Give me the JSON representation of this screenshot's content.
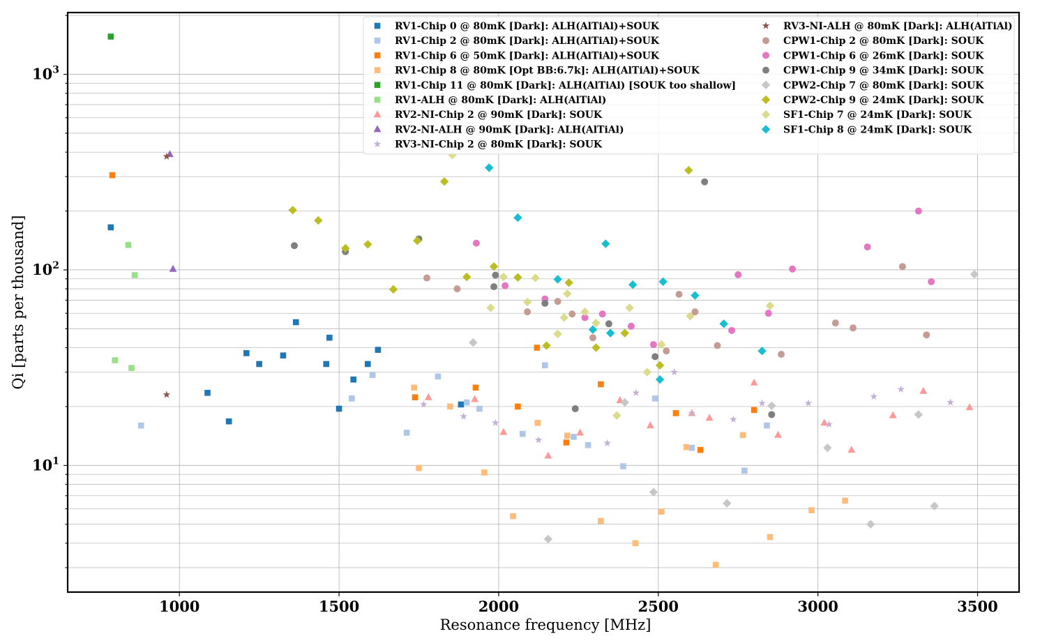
{
  "chart_data": {
    "type": "scatter",
    "title": "",
    "xlabel": "Resonance frequency [MHz]",
    "ylabel": "Qi [parts per thousand]",
    "x_scale": "linear",
    "y_scale": "log",
    "xlim": [
      650,
      3630
    ],
    "ylim": [
      2.25,
      2070
    ],
    "x_ticks": [
      1000,
      1500,
      2000,
      2500,
      3000,
      3500
    ],
    "x_tick_labels": [
      "1000",
      "1500",
      "2000",
      "2500",
      "3000",
      "3500"
    ],
    "y_ticks": [
      10,
      100,
      1000
    ],
    "y_tick_base": "10",
    "y_tick_exponents": [
      "1",
      "2",
      "3"
    ],
    "grid": true,
    "legend_placement": "top-right",
    "series": [
      {
        "name": "RV1-Chip 0 @ 80mK [Dark]: ALH(AlTiAl)+SOUK",
        "marker": "square",
        "color": "#1f77b4",
        "points": [
          [
            785,
            165
          ],
          [
            1088,
            23.5
          ],
          [
            1155,
            16.8
          ],
          [
            1210,
            37.5
          ],
          [
            1250,
            33
          ],
          [
            1325,
            36.5
          ],
          [
            1365,
            54
          ],
          [
            1460,
            33
          ],
          [
            1470,
            45
          ],
          [
            1500,
            19.5
          ],
          [
            1545,
            27.5
          ],
          [
            1590,
            33
          ],
          [
            1622,
            39
          ],
          [
            1882,
            20.5
          ]
        ]
      },
      {
        "name": "RV1-Chip 2 @ 80mK [Dark]: ALH(AlTiAl)+SOUK",
        "marker": "square",
        "color": "#aec7e8",
        "points": [
          [
            880,
            16
          ],
          [
            1540,
            22
          ],
          [
            1605,
            29
          ],
          [
            1712,
            14.7
          ],
          [
            1810,
            28.5
          ],
          [
            1900,
            21
          ],
          [
            1940,
            19.5
          ],
          [
            2075,
            14.5
          ],
          [
            2145,
            32.5
          ],
          [
            2235,
            14
          ],
          [
            2280,
            12.7
          ],
          [
            2390,
            9.9
          ],
          [
            2490,
            22
          ],
          [
            2605,
            12.3
          ],
          [
            2770,
            9.4
          ],
          [
            2840,
            16
          ]
        ]
      },
      {
        "name": "RV1-Chip 6 @ 50mK [Dark]: ALH(AlTiAl)+SOUK",
        "marker": "square",
        "color": "#ff7f0e",
        "points": [
          [
            790,
            305
          ],
          [
            1738,
            22.3
          ],
          [
            1928,
            25
          ],
          [
            2060,
            20
          ],
          [
            2120,
            40
          ],
          [
            2212,
            13.1
          ],
          [
            2320,
            26
          ],
          [
            2555,
            18.5
          ],
          [
            2632,
            12
          ],
          [
            2800,
            19.2
          ]
        ]
      },
      {
        "name": "RV1-Chip 8 @ 80mK [Opt BB:6.7k]: ALH(AlTiAl)+SOUK",
        "marker": "square",
        "color": "#ffbb78",
        "points": [
          [
            1735,
            25
          ],
          [
            1750,
            9.7
          ],
          [
            1848,
            20
          ],
          [
            1955,
            9.2
          ],
          [
            2045,
            5.5
          ],
          [
            2122,
            16.5
          ],
          [
            2215,
            14.2
          ],
          [
            2320,
            5.2
          ],
          [
            2428,
            4
          ],
          [
            2510,
            5.8
          ],
          [
            2588,
            12.4
          ],
          [
            2680,
            3.1
          ],
          [
            2765,
            14.3
          ],
          [
            2850,
            4.3
          ],
          [
            2980,
            5.9
          ],
          [
            3085,
            6.6
          ]
        ]
      },
      {
        "name": "RV1-Chip 11 @ 80mK [Dark]: ALH(AlTiAl) [SOUK too shallow]",
        "marker": "square",
        "color": "#2ca02c",
        "points": [
          [
            785,
            1560
          ]
        ]
      },
      {
        "name": "RV1-ALH @ 80mK [Dark]: ALH(AlTiAl)",
        "marker": "square",
        "color": "#98df8a",
        "points": [
          [
            798,
            34.5
          ],
          [
            840,
            134
          ],
          [
            850,
            31.5
          ],
          [
            860,
            94
          ]
        ]
      },
      {
        "name": "RV2-NI-Chip 2 @ 90mK [Dark]: SOUK",
        "marker": "triangle",
        "color": "#ff9896",
        "points": [
          [
            1780,
            22.3
          ],
          [
            1925,
            21.8
          ],
          [
            2015,
            14.8
          ],
          [
            2155,
            11.2
          ],
          [
            2255,
            14.7
          ],
          [
            2380,
            21.5
          ],
          [
            2475,
            16
          ],
          [
            2605,
            18.5
          ],
          [
            2660,
            17.5
          ],
          [
            2800,
            26.5
          ],
          [
            2875,
            14.3
          ],
          [
            3020,
            16.5
          ],
          [
            3105,
            12
          ],
          [
            3235,
            18
          ],
          [
            3330,
            24
          ],
          [
            3475,
            19.8
          ]
        ]
      },
      {
        "name": "RV2-NI-ALH @ 90mK [Dark]: ALH(AlTiAl)",
        "marker": "triangle",
        "color": "#9467bd",
        "points": [
          [
            970,
            390
          ],
          [
            980,
            101
          ]
        ]
      },
      {
        "name": "RV3-NI-Chip 2 @ 80mK [Dark]: SOUK",
        "marker": "star",
        "color": "#c5b0d5",
        "points": [
          [
            1765,
            20.5
          ],
          [
            1890,
            17.8
          ],
          [
            1990,
            16.5
          ],
          [
            2125,
            13.5
          ],
          [
            2340,
            13
          ],
          [
            2430,
            23.5
          ],
          [
            2550,
            30
          ],
          [
            2605,
            18.5
          ],
          [
            2735,
            17.2
          ],
          [
            2825,
            20.8
          ],
          [
            2970,
            20.8
          ],
          [
            3035,
            16.2
          ],
          [
            3175,
            22.5
          ],
          [
            3260,
            24.5
          ],
          [
            3415,
            21
          ]
        ]
      },
      {
        "name": "RV3-NI-ALH @ 80mK [Dark]: ALH(AlTiAl)",
        "marker": "star",
        "color": "#8c564b",
        "points": [
          [
            960,
            380
          ],
          [
            960,
            23
          ]
        ]
      },
      {
        "name": "CPW1-Chip 2 @ 80mK [Dark]: SOUK",
        "marker": "circle",
        "color": "#c49c94",
        "points": [
          [
            1775,
            91
          ],
          [
            1870,
            80
          ],
          [
            2090,
            61
          ],
          [
            2185,
            69
          ],
          [
            2230,
            59.5
          ],
          [
            2295,
            45
          ],
          [
            2525,
            38.5
          ],
          [
            2565,
            75
          ],
          [
            2615,
            61
          ],
          [
            2685,
            41
          ],
          [
            2885,
            37
          ],
          [
            3055,
            53.5
          ],
          [
            3110,
            50.5
          ],
          [
            3265,
            104
          ],
          [
            3340,
            46.5
          ]
        ]
      },
      {
        "name": "CPW1-Chip 6 @ 26mK [Dark]: SOUK",
        "marker": "circle",
        "color": "#e377c2",
        "points": [
          [
            1930,
            137
          ],
          [
            2020,
            83
          ],
          [
            2145,
            71
          ],
          [
            2270,
            57
          ],
          [
            2325,
            59.5
          ],
          [
            2415,
            51.5
          ],
          [
            2485,
            41.5
          ],
          [
            2730,
            49
          ],
          [
            2750,
            94.5
          ],
          [
            2845,
            60
          ],
          [
            2920,
            101
          ],
          [
            3155,
            131
          ],
          [
            3315,
            200
          ],
          [
            3355,
            87
          ]
        ]
      },
      {
        "name": "CPW1-Chip 9 @ 34mK [Dark]: SOUK",
        "marker": "circle",
        "color": "#7f7f7f",
        "points": [
          [
            1360,
            133
          ],
          [
            1520,
            124
          ],
          [
            1750,
            144
          ],
          [
            1985,
            82
          ],
          [
            1990,
            94
          ],
          [
            2145,
            67.5
          ],
          [
            2240,
            19.5
          ],
          [
            2345,
            53
          ],
          [
            2490,
            36
          ],
          [
            2645,
            282
          ],
          [
            2855,
            18.2
          ]
        ]
      },
      {
        "name": "CPW2-Chip 7 @ 80mK [Dark]: SOUK",
        "marker": "diamond",
        "color": "#c7c7c7",
        "points": [
          [
            1920,
            42.5
          ],
          [
            2155,
            4.2
          ],
          [
            2395,
            21
          ],
          [
            2485,
            7.3
          ],
          [
            2715,
            6.4
          ],
          [
            2855,
            20.2
          ],
          [
            3030,
            12.3
          ],
          [
            3165,
            5
          ],
          [
            3315,
            18.2
          ],
          [
            3365,
            6.2
          ],
          [
            3490,
            95
          ]
        ]
      },
      {
        "name": "CPW2-Chip 9 @ 24mK [Dark]: SOUK",
        "marker": "diamond",
        "color": "#bcbd22",
        "points": [
          [
            1355,
            202
          ],
          [
            1435,
            179
          ],
          [
            1520,
            129
          ],
          [
            1590,
            135
          ],
          [
            1670,
            79.5
          ],
          [
            1745,
            141
          ],
          [
            1830,
            283
          ],
          [
            1900,
            92
          ],
          [
            1985,
            104
          ],
          [
            2060,
            91.5
          ],
          [
            2150,
            41
          ],
          [
            2220,
            86
          ],
          [
            2305,
            40
          ],
          [
            2395,
            47.5
          ],
          [
            2505,
            32.5
          ],
          [
            2595,
            323
          ]
        ]
      },
      {
        "name": "SF1-Chip 7 @ 24mK [Dark]: SOUK",
        "marker": "diamond",
        "color": "#dbdb8d",
        "points": [
          [
            1855,
            387
          ],
          [
            1975,
            64
          ],
          [
            2015,
            92
          ],
          [
            2090,
            68.5
          ],
          [
            2115,
            91
          ],
          [
            2185,
            47
          ],
          [
            2205,
            57
          ],
          [
            2215,
            75.5
          ],
          [
            2270,
            61
          ],
          [
            2305,
            53.5
          ],
          [
            2370,
            18
          ],
          [
            2410,
            64
          ],
          [
            2465,
            30
          ],
          [
            2510,
            41.5
          ],
          [
            2600,
            58
          ],
          [
            2850,
            65.5
          ]
        ]
      },
      {
        "name": "SF1-Chip 8 @ 24mK [Dark]: SOUK",
        "marker": "diamond",
        "color": "#17becf",
        "points": [
          [
            1970,
            333
          ],
          [
            2060,
            185
          ],
          [
            2185,
            89.5
          ],
          [
            2295,
            49.5
          ],
          [
            2335,
            136
          ],
          [
            2350,
            47.5
          ],
          [
            2420,
            84
          ],
          [
            2505,
            27.5
          ],
          [
            2515,
            87
          ],
          [
            2615,
            74
          ],
          [
            2705,
            53
          ],
          [
            2825,
            38.5
          ]
        ]
      }
    ]
  }
}
